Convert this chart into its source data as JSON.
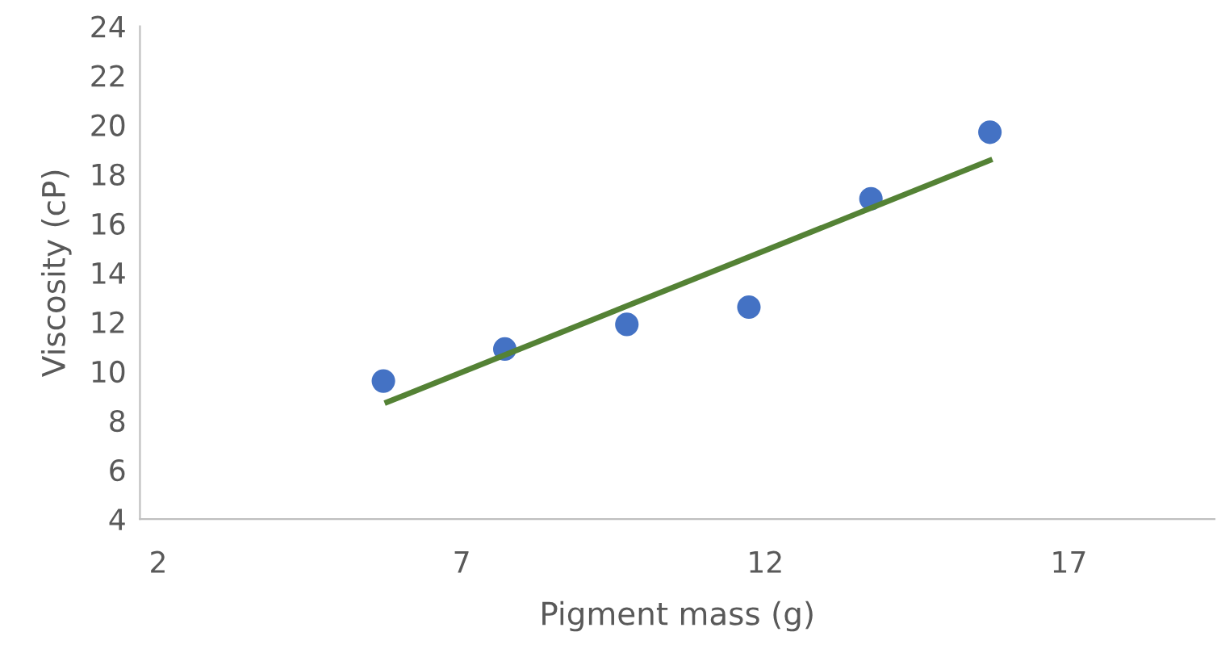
{
  "chart_data": {
    "type": "scatter",
    "xlabel": "Pigment mass (g)",
    "ylabel": "Viscosity (cP)",
    "series": [
      {
        "marker": "circle",
        "color": "#4472c4",
        "x": [
          5.71,
          7.71,
          9.72,
          11.73,
          13.74,
          15.7
        ],
        "values": [
          9.6,
          10.9,
          11.9,
          12.6,
          17.0,
          19.7
        ]
      },
      {
        "type": "line",
        "color": "#548235",
        "x": [
          5.73,
          15.74
        ],
        "values": [
          8.7,
          18.6
        ]
      }
    ],
    "xlim": [
      1.7,
      19.4
    ],
    "xticks": [
      2,
      7,
      12,
      17
    ],
    "ylim": [
      4,
      24
    ],
    "yticks": [
      4,
      6,
      8,
      10,
      12,
      14,
      16,
      18,
      20,
      22,
      24
    ],
    "grid": false,
    "legend": false
  }
}
